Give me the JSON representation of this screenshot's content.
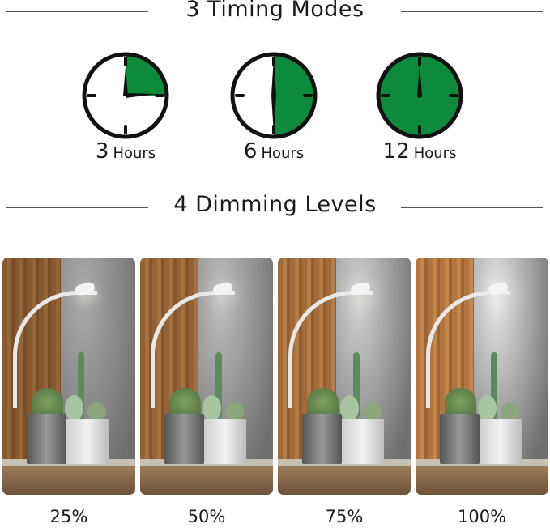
{
  "timing": {
    "title": "3 Timing Modes",
    "modes": [
      {
        "number": "3",
        "unit": "Hours",
        "fraction": 0.25
      },
      {
        "number": "6",
        "unit": "Hours",
        "fraction": 0.5
      },
      {
        "number": "12",
        "unit": "Hours",
        "fraction": 1.0
      }
    ]
  },
  "dimming": {
    "title": "4 Dimming Levels",
    "levels": [
      {
        "label": "25%",
        "value": 25
      },
      {
        "label": "50%",
        "value": 50
      },
      {
        "label": "75%",
        "value": 75
      },
      {
        "label": "100%",
        "value": 100
      }
    ]
  },
  "colors": {
    "accent_green": "#0e8a3c",
    "outline": "#111111"
  }
}
